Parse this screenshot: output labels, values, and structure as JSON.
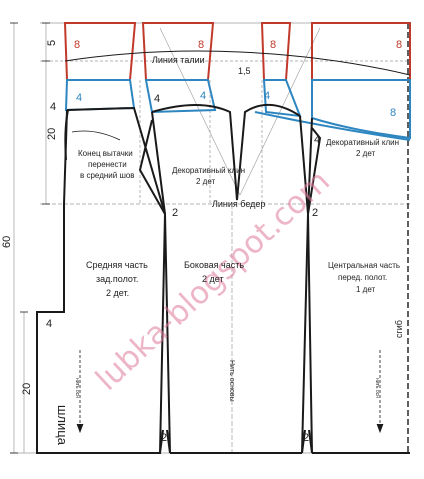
{
  "labels": {
    "dim_5": "5",
    "dim_20_top": "20",
    "dim_60": "60",
    "dim_20_bottom": "20",
    "dim_1_5": "1,5",
    "waist_line": "Линия талии",
    "hip_line": "Линия бедер",
    "dart_note_1": "Конец вытачки",
    "dart_note_2": "перенести",
    "dart_note_3": "в средний шов",
    "wedge_left_1": "Декоративный клин",
    "wedge_left_2": "2 дет",
    "wedge_right_1": "Декоративный клин",
    "wedge_right_2": "2 дет",
    "panel_back_1": "Средняя часть",
    "panel_back_2": "зад.полот.",
    "panel_back_3": "2 дет.",
    "panel_side_1": "Боковая часть",
    "panel_side_2": "2 дет",
    "panel_front_1": "Центральная часть",
    "panel_front_2": "перед. полот.",
    "panel_front_3": "1 дет",
    "slit": "шлица",
    "fold": "сгиб",
    "grain": "Нить основы",
    "grain_small": "нить осн",
    "num_8": "8",
    "num_4": "4",
    "num_2": "2",
    "watermark": "lubka-blogspot.com"
  },
  "colors": {
    "outline": "#1a1a1a",
    "yoke_top": "#c0392b",
    "yoke_bottom": "#2e86c1",
    "guide": "#9a9a9a",
    "watermark": "#e07b9a"
  }
}
